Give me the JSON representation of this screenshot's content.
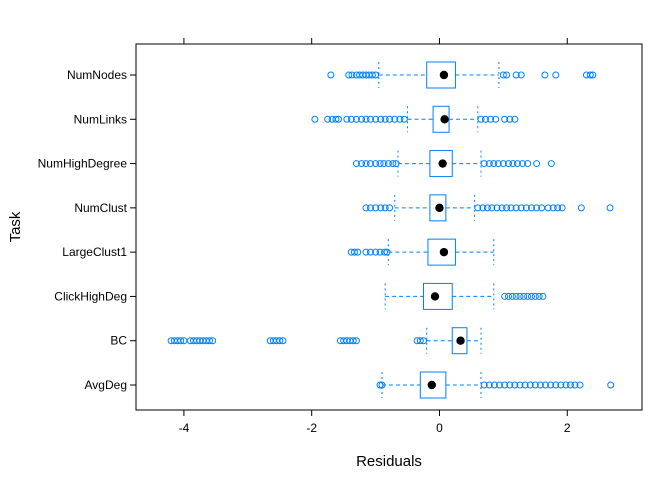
{
  "chart_data": {
    "type": "box",
    "orientation": "horizontal",
    "xlabel": "Residuals",
    "ylabel": "Task",
    "xlim": [
      -4.75,
      3.17
    ],
    "x_ticks": [
      -4,
      -2,
      0,
      2
    ],
    "x_tick_labels": [
      "-4",
      "-2",
      "0",
      "2"
    ],
    "grid": false,
    "box_color": "#0080ff",
    "median_color": "#000000",
    "categories": [
      "NumNodes",
      "NumLinks",
      "NumHighDegree",
      "NumClust",
      "LargeClust1",
      "ClickHighDeg",
      "BC",
      "AvgDeg"
    ],
    "series": [
      {
        "category": "NumNodes",
        "lower_whisker": -0.95,
        "q1": -0.2,
        "median": 0.07,
        "q3": 0.25,
        "upper_whisker": 0.93,
        "outliers": [
          -1.7,
          -1.42,
          -1.37,
          -1.3,
          -1.25,
          -1.2,
          -1.15,
          -1.1,
          -1.05,
          -1.0,
          1.0,
          1.05,
          1.2,
          1.28,
          1.65,
          1.82,
          2.3,
          2.36,
          2.4
        ]
      },
      {
        "category": "NumLinks",
        "lower_whisker": -0.5,
        "q1": -0.1,
        "median": 0.08,
        "q3": 0.15,
        "upper_whisker": 0.6,
        "outliers": [
          -1.95,
          -1.75,
          -1.68,
          -1.62,
          -1.58,
          -1.45,
          -1.38,
          -1.3,
          -1.22,
          -1.15,
          -1.08,
          -1.0,
          -0.92,
          -0.85,
          -0.78,
          -0.7,
          -0.62,
          -0.55,
          0.65,
          0.72,
          0.8,
          0.88,
          1.02,
          1.1,
          1.18
        ]
      },
      {
        "category": "NumHighDegree",
        "lower_whisker": -0.65,
        "q1": -0.15,
        "median": 0.05,
        "q3": 0.2,
        "upper_whisker": 0.65,
        "outliers": [
          -1.3,
          -1.22,
          -1.15,
          -1.08,
          -1.0,
          -0.93,
          -0.87,
          -0.8,
          -0.73,
          -0.68,
          0.7,
          0.78,
          0.85,
          0.92,
          1.0,
          1.08,
          1.15,
          1.22,
          1.3,
          1.38,
          1.52,
          1.75
        ]
      },
      {
        "category": "NumClust",
        "lower_whisker": -0.7,
        "q1": -0.15,
        "median": 0.0,
        "q3": 0.1,
        "upper_whisker": 0.55,
        "outliers": [
          -1.15,
          -1.08,
          -1.0,
          -0.92,
          -0.85,
          -0.78,
          0.6,
          0.68,
          0.75,
          0.82,
          0.9,
          0.98,
          1.05,
          1.12,
          1.2,
          1.28,
          1.36,
          1.44,
          1.52,
          1.6,
          1.7,
          1.78,
          1.85,
          1.92,
          2.22,
          2.67
        ]
      },
      {
        "category": "LargeClust1",
        "lower_whisker": -0.8,
        "q1": -0.18,
        "median": 0.07,
        "q3": 0.25,
        "upper_whisker": 0.85,
        "outliers": [
          -1.38,
          -1.33,
          -1.28,
          -1.15,
          -1.08,
          -1.0,
          -0.93,
          -0.86,
          -0.82
        ]
      },
      {
        "category": "ClickHighDeg",
        "lower_whisker": -0.85,
        "q1": -0.25,
        "median": -0.07,
        "q3": 0.2,
        "upper_whisker": 0.85,
        "outliers": [
          1.02,
          1.08,
          1.14,
          1.2,
          1.26,
          1.32,
          1.38,
          1.44,
          1.5,
          1.56,
          1.62
        ]
      },
      {
        "category": "BC",
        "lower_whisker": -0.2,
        "q1": 0.2,
        "median": 0.33,
        "q3": 0.43,
        "upper_whisker": 0.65,
        "outliers": [
          -4.2,
          -4.15,
          -4.1,
          -4.05,
          -4.0,
          -3.9,
          -3.85,
          -3.8,
          -3.75,
          -3.7,
          -3.65,
          -3.6,
          -3.55,
          -2.65,
          -2.6,
          -2.55,
          -2.5,
          -2.45,
          -1.55,
          -1.5,
          -1.45,
          -1.4,
          -1.35,
          -1.3,
          -0.35,
          -0.3,
          -0.25
        ]
      },
      {
        "category": "AvgDeg",
        "lower_whisker": -0.9,
        "q1": -0.3,
        "median": -0.12,
        "q3": 0.1,
        "upper_whisker": 0.65,
        "outliers": [
          -0.93,
          -0.9,
          0.7,
          0.78,
          0.86,
          0.94,
          1.02,
          1.1,
          1.18,
          1.26,
          1.34,
          1.42,
          1.5,
          1.58,
          1.66,
          1.74,
          1.82,
          1.9,
          1.98,
          2.05,
          2.12,
          2.2,
          2.68
        ]
      }
    ]
  }
}
